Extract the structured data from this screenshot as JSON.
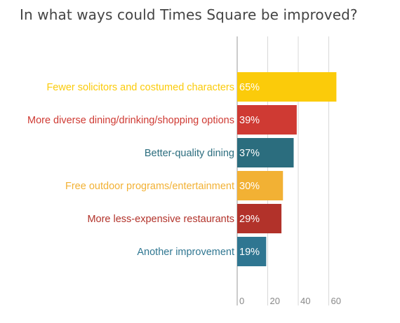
{
  "chart_data": {
    "type": "bar",
    "orientation": "horizontal",
    "title": "In what ways could Times Square be improved?",
    "categories": [
      "Fewer solicitors and costumed characters",
      "More diverse dining/drinking/shopping options",
      "Better-quality dining",
      "Free outdoor programs/entertainment",
      "More less-expensive restaurants",
      "Another improvement"
    ],
    "values": [
      65,
      39,
      37,
      30,
      29,
      19
    ],
    "value_labels": [
      "65%",
      "39%",
      "37%",
      "30%",
      "29%",
      "19%"
    ],
    "colors": [
      "#fbcb0a",
      "#cf3a33",
      "#2b6d7e",
      "#f2b134",
      "#b2322a",
      "#2f7691"
    ],
    "xlim": [
      0,
      70
    ],
    "xticks": [
      0,
      20,
      40,
      60
    ],
    "xtick_labels": [
      "0",
      "20",
      "40",
      "60"
    ],
    "grid": true,
    "grid_color": "#d8d8d8"
  }
}
